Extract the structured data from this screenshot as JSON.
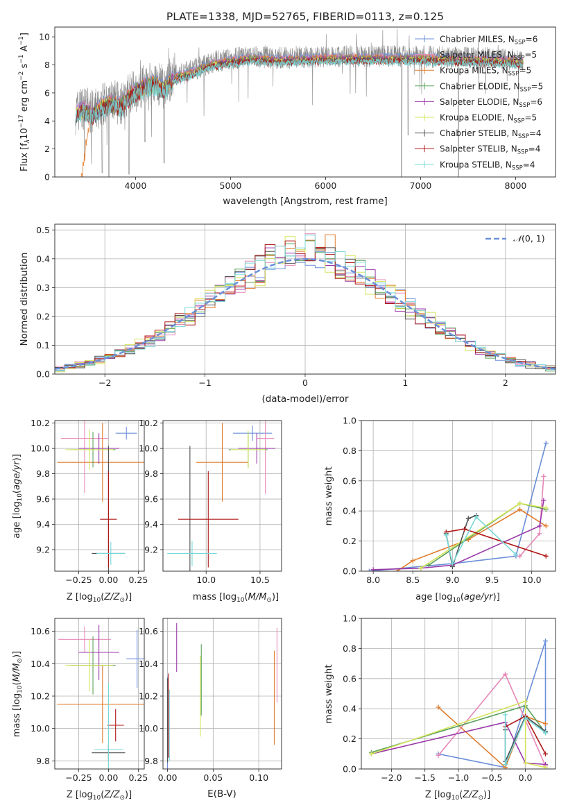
{
  "series_styles": [
    {
      "name": "Chabrier MILES",
      "color": "#6a8fd8"
    },
    {
      "name": "Salpeter MILES",
      "color": "#e687b8"
    },
    {
      "name": "Kroupa MILES",
      "color": "#e07b2a"
    },
    {
      "name": "Chabrier ELODIE",
      "color": "#5aa05a"
    },
    {
      "name": "Salpeter ELODIE",
      "color": "#9a3aa8"
    },
    {
      "name": "Kroupa ELODIE",
      "color": "#d4e45a"
    },
    {
      "name": "Chabrier STELIB",
      "color": "#505050"
    },
    {
      "name": "Salpeter STELIB",
      "color": "#b01818"
    },
    {
      "name": "Kroupa STELIB",
      "color": "#78d8d8"
    }
  ],
  "chart_data": [
    {
      "type": "line",
      "title": "PLATE=1338, MJD=52765, FIBERID=0113, z=0.125",
      "xlabel": "wavelength [Angstrom, rest frame]",
      "ylabel": "Flux [f_λ 10^-17 erg cm^-2 s^-1 A^-1]",
      "xlim": [
        3150,
        8420
      ],
      "ylim": [
        0,
        10.7
      ],
      "xticks": [
        4000,
        5000,
        6000,
        7000,
        8000
      ],
      "yticks": [
        0,
        2,
        4,
        6,
        8,
        10
      ],
      "grid": false,
      "legend": "right",
      "legend_entries": [
        {
          "name": "Chabrier MILES",
          "nssp": "6"
        },
        {
          "name": "Salpeter MILES",
          "nssp": "5"
        },
        {
          "name": "Kroupa MILES",
          "nssp": "5"
        },
        {
          "name": "Chabrier ELODIE",
          "nssp": "5"
        },
        {
          "name": "Salpeter ELODIE",
          "nssp": "6"
        },
        {
          "name": "Kroupa ELODIE",
          "nssp": "5"
        },
        {
          "name": "Chabrier STELIB",
          "nssp": "4"
        },
        {
          "name": "Salpeter STELIB",
          "nssp": "4"
        },
        {
          "name": "Kroupa STELIB",
          "nssp": "4"
        }
      ],
      "continuum": [
        [
          3370,
          4.6
        ],
        [
          3450,
          5.0
        ],
        [
          3550,
          4.6
        ],
        [
          3650,
          5.2
        ],
        [
          3750,
          5.4
        ],
        [
          3850,
          5.2
        ],
        [
          3950,
          6.0
        ],
        [
          4100,
          6.6
        ],
        [
          4200,
          6.8
        ],
        [
          4300,
          6.4
        ],
        [
          4400,
          7.2
        ],
        [
          4600,
          7.6
        ],
        [
          4800,
          8.2
        ],
        [
          5000,
          8.4
        ],
        [
          5200,
          8.6
        ],
        [
          5500,
          8.5
        ],
        [
          6000,
          8.6
        ],
        [
          6500,
          8.6
        ],
        [
          7000,
          8.6
        ],
        [
          7500,
          8.5
        ],
        [
          8000,
          8.4
        ],
        [
          8080,
          8.3
        ]
      ],
      "observed_spectrum": "noisy grey data with dips near 3650, 3930, 6800 and 7400 Angstrom"
    },
    {
      "type": "bar",
      "xlabel": "(data-model)/error",
      "ylabel": "Normed distribution",
      "xlim": [
        -2.5,
        2.5
      ],
      "ylim": [
        0,
        0.52
      ],
      "xticks": [
        -2,
        -1,
        0,
        1,
        2
      ],
      "yticks": [
        0.0,
        0.1,
        0.2,
        0.3,
        0.4,
        0.5
      ],
      "grid": true,
      "legend": "top-right",
      "reference_curve": {
        "name": "N(0,1)",
        "mu": 0,
        "sigma": 1
      },
      "bin_edges_start": -2.5,
      "bin_width": 0.1,
      "histogram_shape": "nine overlapping step histograms tracing the normal curve, peak about 0.45-0.49 near 0"
    },
    {
      "type": "scatter",
      "xlabel": "Z [log10(Z/Z_sun)]",
      "ylabel": "age [log10(age/yr)]",
      "xlim": [
        -0.45,
        0.3
      ],
      "ylim": [
        9.03,
        10.22
      ],
      "xticks": [
        -0.25,
        0.0,
        0.25
      ],
      "yticks": [
        9.2,
        9.4,
        9.6,
        9.8,
        10.0,
        10.2
      ],
      "grid": true,
      "errorbars": [
        {
          "series": "Chabrier MILES",
          "x": 0.15,
          "y": 10.12,
          "xerr": 0.09,
          "yerr": 0.05
        },
        {
          "series": "Salpeter MILES",
          "x": -0.2,
          "y": 10.08,
          "xerr": 0.2,
          "yerr": 0.43
        },
        {
          "series": "Kroupa MILES",
          "x": -0.05,
          "y": 9.89,
          "xerr": 0.38,
          "yerr": 0.31
        },
        {
          "series": "Chabrier ELODIE",
          "x": -0.13,
          "y": 9.99,
          "xerr": 0.19,
          "yerr": 0.14
        },
        {
          "series": "Salpeter ELODIE",
          "x": -0.08,
          "y": 10.0,
          "xerr": 0.17,
          "yerr": 0.12
        },
        {
          "series": "Kroupa ELODIE",
          "x": -0.16,
          "y": 9.99,
          "xerr": 0.2,
          "yerr": 0.16
        },
        {
          "series": "Chabrier STELIB",
          "x": 0.0,
          "y": 9.17,
          "xerr": 0.14,
          "yerr": 0.85
        },
        {
          "series": "Salpeter STELIB",
          "x": 0.0,
          "y": 9.44,
          "xerr": 0.07,
          "yerr": 0.38
        },
        {
          "series": "Kroupa STELIB",
          "x": 0.02,
          "y": 9.17,
          "xerr": 0.12,
          "yerr": 0.09
        }
      ]
    },
    {
      "type": "scatter",
      "xlabel": "mass [log10(M/M_sun)]",
      "ylabel": "",
      "xlim": [
        9.6,
        10.7
      ],
      "ylim": [
        9.03,
        10.22
      ],
      "xticks": [
        10.0,
        10.5
      ],
      "yticks": [
        9.2,
        9.4,
        9.6,
        9.8,
        10.0,
        10.2
      ],
      "grid": true,
      "errorbars": [
        {
          "series": "Chabrier MILES",
          "x": 10.43,
          "y": 10.12,
          "xerr": 0.18,
          "yerr": 0.06
        },
        {
          "series": "Salpeter MILES",
          "x": 10.55,
          "y": 10.08,
          "xerr": 0.08,
          "yerr": 0.44
        },
        {
          "series": "Kroupa MILES",
          "x": 10.15,
          "y": 9.89,
          "xerr": 0.24,
          "yerr": 0.31
        },
        {
          "series": "Chabrier ELODIE",
          "x": 10.39,
          "y": 9.99,
          "xerr": 0.18,
          "yerr": 0.14
        },
        {
          "series": "Salpeter ELODIE",
          "x": 10.47,
          "y": 10.0,
          "xerr": 0.17,
          "yerr": 0.12
        },
        {
          "series": "Kroupa ELODIE",
          "x": 10.39,
          "y": 9.99,
          "xerr": 0.16,
          "yerr": 0.15
        },
        {
          "series": "Chabrier STELIB",
          "x": 9.85,
          "y": 9.17,
          "xerr": 0.05,
          "yerr": 0.85
        },
        {
          "series": "Salpeter STELIB",
          "x": 10.02,
          "y": 9.44,
          "xerr": 0.28,
          "yerr": 0.38
        },
        {
          "series": "Kroupa STELIB",
          "x": 9.87,
          "y": 9.17,
          "xerr": 0.23,
          "yerr": 0.1
        }
      ]
    },
    {
      "type": "line",
      "xlabel": "age [log10(age/yr)]",
      "ylabel": "mass weight",
      "xlim": [
        7.85,
        10.3
      ],
      "ylim": [
        0,
        1.0
      ],
      "xticks": [
        8.0,
        8.5,
        9.0,
        9.5,
        10.0
      ],
      "yticks": [
        0.0,
        0.2,
        0.4,
        0.6,
        0.8,
        1.0
      ],
      "grid": true,
      "series": [
        {
          "name": "Chabrier MILES",
          "x": [
            7.95,
            9.0,
            9.8,
            10.18
          ],
          "y": [
            0.0,
            0.05,
            0.1,
            0.85
          ]
        },
        {
          "name": "Salpeter MILES",
          "x": [
            9.85,
            10.1,
            10.15
          ],
          "y": [
            0.1,
            0.25,
            0.63
          ]
        },
        {
          "name": "Kroupa MILES",
          "x": [
            8.3,
            8.5,
            9.2,
            9.85,
            10.18
          ],
          "y": [
            0.0,
            0.07,
            0.21,
            0.41,
            0.3
          ]
        },
        {
          "name": "Chabrier ELODIE",
          "x": [
            8.7,
            9.85,
            10.18
          ],
          "y": [
            0.04,
            0.45,
            0.41
          ]
        },
        {
          "name": "Salpeter ELODIE",
          "x": [
            8.0,
            8.6,
            9.0,
            10.1,
            10.15
          ],
          "y": [
            0.01,
            0.02,
            0.04,
            0.3,
            0.47
          ]
        },
        {
          "name": "Kroupa ELODIE",
          "x": [
            8.6,
            9.85,
            10.18
          ],
          "y": [
            0.02,
            0.45,
            0.42
          ]
        },
        {
          "name": "Chabrier STELIB",
          "x": [
            8.92,
            9.0,
            9.2,
            9.3
          ],
          "y": [
            0.25,
            0.03,
            0.35,
            0.37
          ]
        },
        {
          "name": "Salpeter STELIB",
          "x": [
            8.92,
            9.15,
            10.18
          ],
          "y": [
            0.26,
            0.28,
            0.1
          ]
        },
        {
          "name": "Kroupa STELIB",
          "x": [
            8.92,
            9.0,
            9.3,
            9.8
          ],
          "y": [
            0.24,
            0.05,
            0.36,
            0.11
          ]
        }
      ]
    },
    {
      "type": "scatter",
      "xlabel": "Z [log10(Z/Z_sun)]",
      "ylabel": "mass [log10(M/M_sun)]",
      "xlim": [
        -0.45,
        0.3
      ],
      "ylim": [
        9.75,
        10.68
      ],
      "xticks": [
        -0.25,
        0.0,
        0.25
      ],
      "yticks": [
        9.8,
        10.0,
        10.2,
        10.4,
        10.6
      ],
      "grid": true,
      "errorbars": [
        {
          "series": "Chabrier MILES",
          "x": 0.24,
          "y": 10.43,
          "xerr": 0.09,
          "yerr": 0.18
        },
        {
          "series": "Salpeter MILES",
          "x": -0.2,
          "y": 10.55,
          "xerr": 0.22,
          "yerr": 0.08
        },
        {
          "series": "Kroupa MILES",
          "x": -0.05,
          "y": 10.15,
          "xerr": 0.38,
          "yerr": 0.24
        },
        {
          "series": "Chabrier ELODIE",
          "x": -0.13,
          "y": 10.39,
          "xerr": 0.19,
          "yerr": 0.18
        },
        {
          "series": "Salpeter ELODIE",
          "x": -0.08,
          "y": 10.47,
          "xerr": 0.17,
          "yerr": 0.17
        },
        {
          "series": "Kroupa ELODIE",
          "x": -0.16,
          "y": 10.39,
          "xerr": 0.2,
          "yerr": 0.16
        },
        {
          "series": "Chabrier STELIB",
          "x": 0.0,
          "y": 9.85,
          "xerr": 0.14,
          "yerr": 0.05
        },
        {
          "series": "Salpeter STELIB",
          "x": 0.06,
          "y": 10.02,
          "xerr": 0.07,
          "yerr": 0.1
        },
        {
          "series": "Kroupa STELIB",
          "x": 0.0,
          "y": 9.87,
          "xerr": 0.12,
          "yerr": 0.41
        }
      ]
    },
    {
      "type": "scatter",
      "xlabel": "E(B-V)",
      "ylabel": "",
      "xlim": [
        -0.005,
        0.125
      ],
      "ylim": [
        9.75,
        10.68
      ],
      "xticks": [
        0.0,
        0.05,
        0.1
      ],
      "yticks": [
        9.8,
        10.0,
        10.2,
        10.4,
        10.6
      ],
      "grid": true,
      "errorbars": [
        {
          "series": "Chabrier MILES",
          "x": 0.0,
          "y": 10.02,
          "xerr": 0,
          "yerr": 0.3
        },
        {
          "series": "Salpeter MILES",
          "x": 0.12,
          "y": 10.39,
          "xerr": 0,
          "yerr": 0.23
        },
        {
          "series": "Kroupa MILES",
          "x": 0.117,
          "y": 10.19,
          "xerr": 0,
          "yerr": 0.29
        },
        {
          "series": "Chabrier ELODIE",
          "x": 0.037,
          "y": 10.3,
          "xerr": 0,
          "yerr": 0.22
        },
        {
          "series": "Salpeter ELODIE",
          "x": 0.01,
          "y": 10.5,
          "xerr": 0,
          "yerr": 0.15
        },
        {
          "series": "Kroupa ELODIE",
          "x": 0.036,
          "y": 10.2,
          "xerr": 0,
          "yerr": 0.25
        },
        {
          "series": "Chabrier STELIB",
          "x": 0.0,
          "y": 10.05,
          "xerr": 0,
          "yerr": 0.26
        },
        {
          "series": "Salpeter STELIB",
          "x": 0.001,
          "y": 10.08,
          "xerr": 0,
          "yerr": 0.26
        },
        {
          "series": "Kroupa STELIB",
          "x": 0.002,
          "y": 10.02,
          "xerr": 0,
          "yerr": 0.22
        }
      ]
    },
    {
      "type": "line",
      "xlabel": "Z [log10(Z/Z_sun)]",
      "ylabel": "mass weight",
      "xlim": [
        -2.45,
        0.45
      ],
      "ylim": [
        0,
        1.0
      ],
      "xticks": [
        -2.0,
        -1.5,
        -1.0,
        -0.5,
        0.0
      ],
      "yticks": [
        0.0,
        0.2,
        0.4,
        0.6,
        0.8,
        1.0
      ],
      "grid": true,
      "series": [
        {
          "name": "Chabrier MILES",
          "x": [
            -1.3,
            -0.3,
            0.3,
            0.3
          ],
          "y": [
            0.1,
            0.01,
            0.85,
            0.25
          ]
        },
        {
          "name": "Salpeter MILES",
          "x": [
            -1.3,
            -0.3,
            0.3
          ],
          "y": [
            0.09,
            0.63,
            0.02
          ]
        },
        {
          "name": "Kroupa MILES",
          "x": [
            -1.3,
            -0.3,
            0.0,
            0.3
          ],
          "y": [
            0.41,
            0.01,
            0.35,
            0.3
          ]
        },
        {
          "name": "Chabrier ELODIE",
          "x": [
            -2.3,
            0.0,
            0.3
          ],
          "y": [
            0.11,
            0.42,
            0.24
          ]
        },
        {
          "name": "Salpeter ELODIE",
          "x": [
            -2.3,
            -0.3,
            0.0,
            0.3
          ],
          "y": [
            0.1,
            0.31,
            0.04,
            0.03
          ]
        },
        {
          "name": "Kroupa ELODIE",
          "x": [
            -2.3,
            0.0,
            0.0,
            0.3
          ],
          "y": [
            0.1,
            0.45,
            0.04,
            0.01
          ]
        },
        {
          "name": "Chabrier STELIB",
          "x": [
            -0.3,
            -0.3,
            0.0,
            0.3
          ],
          "y": [
            0.26,
            0.05,
            0.35,
            0.25
          ]
        },
        {
          "name": "Salpeter STELIB",
          "x": [
            -0.3,
            0.0,
            0.3
          ],
          "y": [
            0.28,
            0.35,
            0.1
          ]
        },
        {
          "name": "Kroupa STELIB",
          "x": [
            -0.3,
            -0.3,
            0.0,
            0.3
          ],
          "y": [
            0.36,
            0.03,
            0.34,
            0.24
          ]
        }
      ]
    }
  ],
  "labels": {
    "p1_title": "PLATE=1338, MJD=52765, FIBERID=0113, z=0.125",
    "p1_xlabel": "wavelength [Angstrom, rest frame]",
    "p2_xlabel": "(data-model)/error",
    "p2_ylabel": "Normed distribution",
    "p3_ylabel": "age  [log",
    "p5_xlabel": "age  [log",
    "p5_ylabel": "mass weight",
    "p6_ylabel": "mass [log",
    "p7_xlabel": "E(B-V)",
    "p8_ylabel": "mass weight"
  }
}
